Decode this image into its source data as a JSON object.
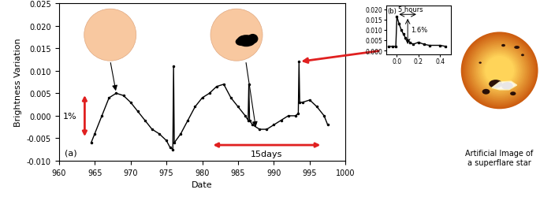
{
  "chart_data": [
    {
      "type": "line",
      "xlabel": "Date",
      "ylabel": "Brightness Variation",
      "annotations": [
        "1%",
        "15days",
        "(a)"
      ],
      "x": [
        964.5,
        965,
        966,
        967,
        968,
        969,
        970,
        971,
        972,
        973,
        974,
        975,
        975.5,
        975.9,
        976.0,
        976.1,
        977,
        978,
        979,
        980,
        981,
        982,
        983,
        984,
        985,
        986,
        986.4,
        986.5,
        986.6,
        987,
        988,
        989,
        990,
        991,
        992,
        993,
        993.4,
        993.5,
        993.6,
        994,
        995,
        996,
        997,
        997.5
      ],
      "values": [
        -0.006,
        -0.004,
        0.0,
        0.004,
        0.005,
        0.0045,
        0.003,
        0.001,
        -0.001,
        -0.003,
        -0.004,
        -0.0055,
        -0.007,
        -0.0075,
        0.011,
        -0.006,
        -0.004,
        -0.001,
        0.002,
        0.004,
        0.005,
        0.0065,
        0.007,
        0.004,
        0.002,
        0.0,
        -0.001,
        0.007,
        -0.001,
        -0.002,
        -0.003,
        -0.003,
        -0.002,
        -0.001,
        0.0,
        0.0,
        0.0005,
        0.012,
        0.003,
        0.003,
        0.0035,
        0.002,
        0.0,
        -0.002
      ],
      "color": "#000000",
      "marker": "o",
      "line_style": "solid",
      "xlim": [
        960,
        1000
      ],
      "xticks": [
        960,
        965,
        970,
        975,
        980,
        985,
        990,
        995,
        1000
      ],
      "ylim": [
        -0.01,
        0.025
      ],
      "yticks": [
        {
          "value": -0.01,
          "label": "-0.010"
        },
        {
          "value": -0.005,
          "label": "-0.005"
        },
        {
          "value": 0,
          "label": "0.000"
        },
        {
          "value": 0.005,
          "label": "0.005"
        },
        {
          "value": 0.01,
          "label": "0.010"
        },
        {
          "value": 0.015,
          "label": "0.015"
        },
        {
          "value": 0.02,
          "label": "0.020"
        },
        {
          "value": 0.025,
          "label": "0.025"
        }
      ],
      "grid": false
    },
    {
      "type": "line",
      "annotations": [
        "(b)",
        "5 hours",
        "1.6%"
      ],
      "x": [
        -0.08,
        -0.04,
        -0.01,
        0.0,
        0.02,
        0.04,
        0.06,
        0.08,
        0.1,
        0.12,
        0.15,
        0.2,
        0.25,
        0.3,
        0.4,
        0.45
      ],
      "values": [
        0.002,
        0.002,
        0.002,
        0.0165,
        0.013,
        0.01,
        0.008,
        0.006,
        0.005,
        0.004,
        0.003,
        0.004,
        0.003,
        0.0025,
        0.0025,
        0.002
      ],
      "color": "#000000",
      "marker": "s",
      "line_style": "solid",
      "xlim": [
        -0.1,
        0.5
      ],
      "xticks": [
        {
          "value": 0,
          "label": "0.0"
        },
        {
          "value": 0.2,
          "label": "0.2"
        },
        {
          "value": 0.4,
          "label": "0.4"
        }
      ],
      "ylim": [
        -0.002,
        0.022
      ],
      "yticks": [
        {
          "value": 0,
          "label": "0.000"
        },
        {
          "value": 0.005,
          "label": "0.005"
        },
        {
          "value": 0.01,
          "label": "0.010"
        },
        {
          "value": 0.015,
          "label": "0.015"
        },
        {
          "value": 0.02,
          "label": "0.020"
        }
      ],
      "grid": false
    }
  ],
  "image": {
    "caption": "Artificial Image of\na superflare star"
  }
}
